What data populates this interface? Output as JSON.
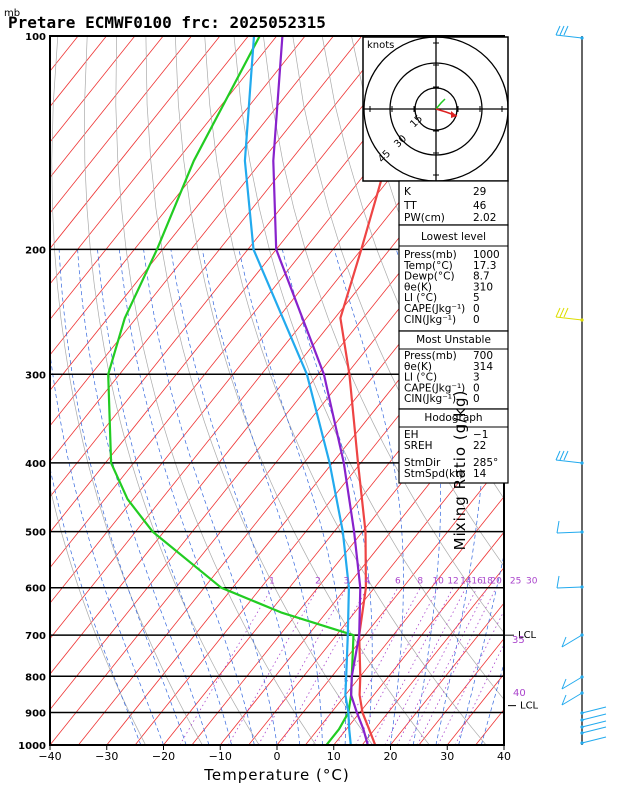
{
  "header": {
    "unit_mb": "mb",
    "title": "Pretare ECMWF0100 frc: 2025052315"
  },
  "axes": {
    "xlabel": "Temperature (°C)",
    "ylabel_right": "Mixing Ratio (g/kg)",
    "x_ticks": [
      -40,
      -30,
      -20,
      -10,
      0,
      10,
      20,
      30,
      40
    ],
    "y_ticks": [
      100,
      200,
      300,
      400,
      500,
      600,
      700,
      800,
      900,
      1000
    ],
    "xlim": [
      -40,
      40
    ],
    "ylim": [
      1000,
      100
    ],
    "y_scale": "log"
  },
  "mixing_ratio_labels": [
    "1",
    "2",
    "3",
    "4",
    "6",
    "8",
    "10",
    "12",
    "14",
    "16",
    "18",
    "20",
    "25",
    "30"
  ],
  "side_labels": {
    "lcl_upper": "LCL",
    "lcl_lower": "LCL",
    "theta_35": "35",
    "theta_40": "40"
  },
  "hodograph": {
    "units": "knots",
    "ring_labels": [
      "15",
      "30",
      "45"
    ],
    "ring_speeds_kt": [
      15,
      30,
      45
    ]
  },
  "indices": {
    "K": "29",
    "TT": "46",
    "PW": "2.02",
    "K_label": "K",
    "TT_label": "TT",
    "PW_label": "PW(cm)"
  },
  "lowest_level": {
    "header": "Lowest level",
    "rows": [
      {
        "label": "Press(mb)",
        "value": "1000"
      },
      {
        "label": "Temp(°C)",
        "value": "17.3"
      },
      {
        "label": "Dewp(°C)",
        "value": "8.7"
      },
      {
        "label": "θe(K)",
        "value": "310"
      },
      {
        "label": "LI (°C)",
        "value": "5"
      },
      {
        "label": "CAPE(Jkg⁻¹)",
        "value": "0"
      },
      {
        "label": "CIN(Jkg⁻¹)",
        "value": "0"
      }
    ]
  },
  "most_unstable": {
    "header": "Most Unstable",
    "rows": [
      {
        "label": "Press(mb)",
        "value": "700"
      },
      {
        "label": "θe(K)",
        "value": "314"
      },
      {
        "label": "LI (°C)",
        "value": "3"
      },
      {
        "label": "CAPE(Jkg⁻¹)",
        "value": "0"
      },
      {
        "label": "CIN(Jkg⁻¹)",
        "value": "0"
      }
    ]
  },
  "hodo_table": {
    "header": "Hodograph",
    "rows": [
      {
        "label": "EH",
        "value": "−1"
      },
      {
        "label": "SREH",
        "value": "22"
      },
      {
        "label": "StmDir",
        "value": "285°"
      },
      {
        "label": "StmSpd(kt)",
        "value": "14"
      }
    ]
  },
  "colors": {
    "temperature": "#ee4444",
    "dewpoint": "#22cc22",
    "parcel": "#8822cc",
    "wetbulb": "#22aaee",
    "isotherm": "#ee3333",
    "dry_adiabat": "#aaaaaa",
    "moist_adiabat": "#3366dd",
    "mixing_ratio": "#aa44cc",
    "wind": "#22aaee",
    "wind_mid": "#dddd00"
  },
  "chart_data": {
    "type": "line",
    "title": "Pretare ECMWF0100 frc: 2025052315",
    "xlabel": "Temperature (°C)",
    "ylabel": "mb",
    "xlim": [
      -40,
      40
    ],
    "ylim": [
      1000,
      100
    ],
    "series": [
      {
        "key": "temperature",
        "p": [
          1000,
          950,
          900,
          850,
          800,
          700,
          600,
          500,
          400,
          300,
          250,
          200,
          150,
          100
        ],
        "t": [
          17.3,
          14,
          10.5,
          7.5,
          5,
          -1,
          -6.5,
          -14.5,
          -25.5,
          -39.5,
          -49,
          -55,
          -63,
          -66
        ]
      },
      {
        "key": "dewpoint",
        "p": [
          1000,
          950,
          900,
          850,
          800,
          700,
          650,
          600,
          500,
          450,
          400,
          300,
          250,
          200,
          150,
          100
        ],
        "t": [
          8.7,
          8.7,
          8.0,
          6.0,
          3.5,
          -2.0,
          -18,
          -32,
          -52,
          -61,
          -69,
          -82,
          -87,
          -91,
          -97,
          -103
        ]
      },
      {
        "key": "parcel",
        "p": [
          1000,
          950,
          900,
          850,
          800,
          700,
          600,
          500,
          400,
          300,
          200,
          150,
          100
        ],
        "t": [
          16,
          13,
          9.5,
          6.0,
          3.5,
          -1.0,
          -7.5,
          -16.5,
          -28,
          -44,
          -70,
          -83,
          -99
        ]
      },
      {
        "key": "wetbulb",
        "p": [
          1000,
          950,
          900,
          850,
          800,
          700,
          600,
          500,
          400,
          300,
          200,
          150,
          100
        ],
        "t": [
          13,
          10.5,
          8.0,
          5.0,
          2.5,
          -3.0,
          -9.5,
          -18.5,
          -30.5,
          -47,
          -74,
          -88,
          -104
        ]
      }
    ],
    "grid": true,
    "legend": "none"
  }
}
